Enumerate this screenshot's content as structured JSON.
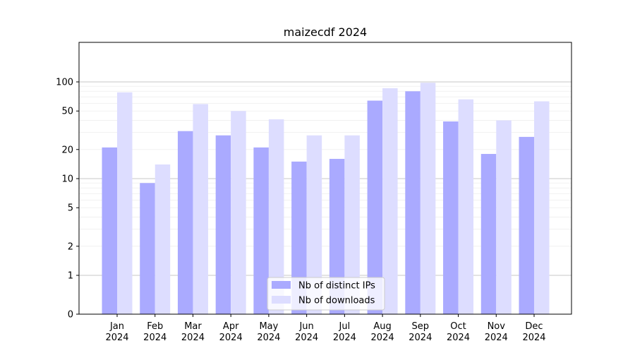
{
  "chart_data": {
    "type": "bar",
    "title": "maizecdf 2024",
    "xlabel": "",
    "ylabel": "",
    "y_scale": "symlog",
    "y_ticks": [
      0,
      1,
      2,
      5,
      10,
      20,
      50,
      100
    ],
    "y_tick_labels": [
      "0",
      "1",
      "2",
      "5",
      "10",
      "20",
      "50",
      "100"
    ],
    "ylim": [
      0,
      120
    ],
    "grid": "horizontal major and minor",
    "legend_position": "bottom-center",
    "categories": [
      {
        "month": "Jan",
        "year": "2024"
      },
      {
        "month": "Feb",
        "year": "2024"
      },
      {
        "month": "Mar",
        "year": "2024"
      },
      {
        "month": "Apr",
        "year": "2024"
      },
      {
        "month": "May",
        "year": "2024"
      },
      {
        "month": "Jun",
        "year": "2024"
      },
      {
        "month": "Jul",
        "year": "2024"
      },
      {
        "month": "Aug",
        "year": "2024"
      },
      {
        "month": "Sep",
        "year": "2024"
      },
      {
        "month": "Oct",
        "year": "2024"
      },
      {
        "month": "Nov",
        "year": "2024"
      },
      {
        "month": "Dec",
        "year": "2024"
      }
    ],
    "series": [
      {
        "name": "Nb of distinct IPs",
        "color": "#aaaaff",
        "values": [
          21,
          9,
          31,
          28,
          21,
          15,
          16,
          64,
          80,
          39,
          18,
          27
        ]
      },
      {
        "name": "Nb of downloads",
        "color": "#ddddff",
        "values": [
          78,
          14,
          59,
          50,
          41,
          28,
          28,
          86,
          98,
          66,
          40,
          63
        ]
      }
    ]
  }
}
